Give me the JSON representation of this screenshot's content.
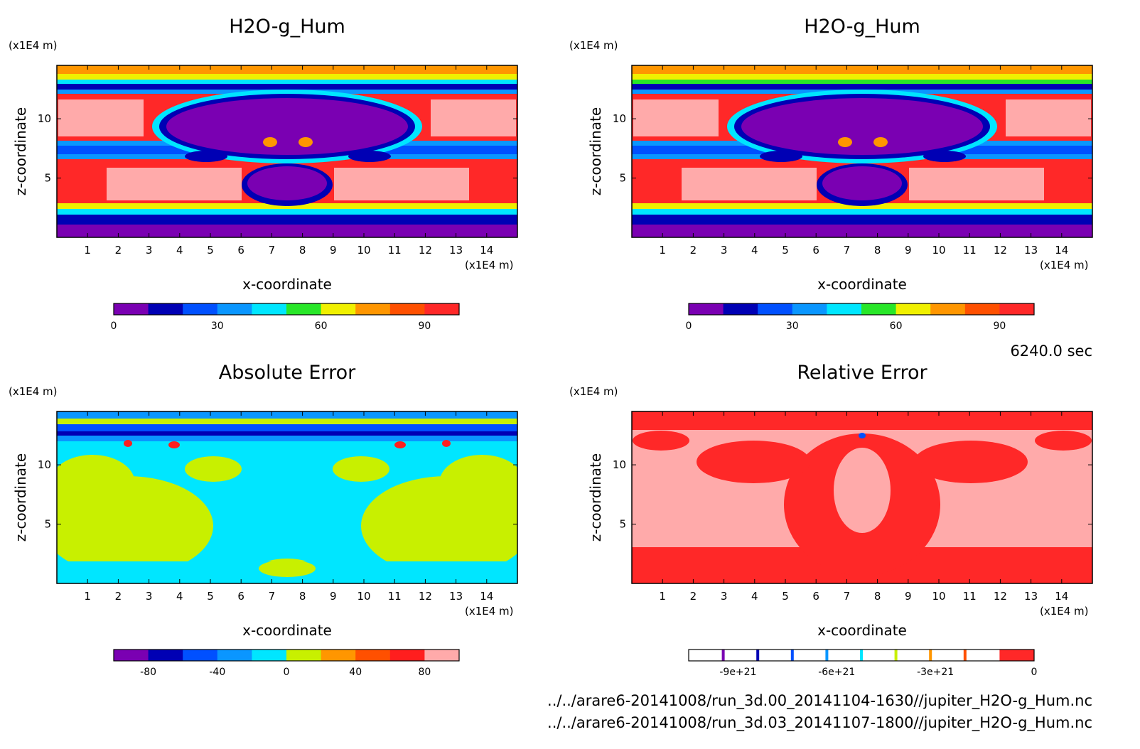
{
  "time_label": "6240.0 sec",
  "files": [
    "../../arare6-20141008/run_3d.00_20141104-1630//jupiter_H2O-g_Hum.nc",
    "../../arare6-20141008/run_3d.03_20141107-1800//jupiter_H2O-g_Hum.nc"
  ],
  "chart_data": [
    {
      "type": "heatmap",
      "title": "H2O-g_Hum",
      "xlabel": "x-coordinate",
      "ylabel": "z-coordinate",
      "x_unit": "(x1E4 m)",
      "y_unit": "(x1E4 m)",
      "xlim": [
        0,
        15
      ],
      "ylim": [
        0,
        14.5
      ],
      "xticks": [
        "1",
        "2",
        "3",
        "4",
        "5",
        "6",
        "7",
        "8",
        "9",
        "10",
        "11",
        "12",
        "13",
        "14"
      ],
      "yticks": [
        "5",
        "10"
      ],
      "colorbar": {
        "colors": [
          "#7a00b2",
          "#0000b4",
          "#0050ff",
          "#0a96ff",
          "#00e6ff",
          "#28e628",
          "#f0f000",
          "#ff9600",
          "#ff5000",
          "#ff2828"
        ],
        "tick_labels": [
          "0",
          "30",
          "60",
          "90"
        ],
        "tick_values": [
          0,
          30,
          60,
          90
        ],
        "range": [
          0,
          100
        ]
      }
    },
    {
      "type": "heatmap",
      "title": "H2O-g_Hum",
      "xlabel": "x-coordinate",
      "ylabel": "z-coordinate",
      "x_unit": "(x1E4 m)",
      "y_unit": "(x1E4 m)",
      "xlim": [
        0,
        15
      ],
      "ylim": [
        0,
        14.5
      ],
      "xticks": [
        "1",
        "2",
        "3",
        "4",
        "5",
        "6",
        "7",
        "8",
        "9",
        "10",
        "11",
        "12",
        "13",
        "14"
      ],
      "yticks": [
        "5",
        "10"
      ],
      "colorbar": {
        "colors": [
          "#7a00b2",
          "#0000b4",
          "#0050ff",
          "#0a96ff",
          "#00e6ff",
          "#28e628",
          "#f0f000",
          "#ff9600",
          "#ff5000",
          "#ff2828"
        ],
        "tick_labels": [
          "0",
          "30",
          "60",
          "90"
        ],
        "tick_values": [
          0,
          30,
          60,
          90
        ],
        "range": [
          0,
          100
        ]
      }
    },
    {
      "type": "heatmap",
      "title": "Absolute Error",
      "xlabel": "x-coordinate",
      "ylabel": "z-coordinate",
      "x_unit": "(x1E4 m)",
      "y_unit": "(x1E4 m)",
      "xlim": [
        0,
        15
      ],
      "ylim": [
        0,
        14.5
      ],
      "xticks": [
        "1",
        "2",
        "3",
        "4",
        "5",
        "6",
        "7",
        "8",
        "9",
        "10",
        "11",
        "12",
        "13",
        "14"
      ],
      "yticks": [
        "5",
        "10"
      ],
      "colorbar": {
        "colors": [
          "#7a00b2",
          "#0000b4",
          "#0050ff",
          "#0a96ff",
          "#00e6ff",
          "#c8f000",
          "#ff9600",
          "#ff5000",
          "#ff1e1e",
          "#ffaaaa"
        ],
        "tick_labels": [
          "-80",
          "-40",
          "0",
          "40",
          "80"
        ],
        "tick_values": [
          -80,
          -40,
          0,
          40,
          80
        ],
        "range": [
          -100,
          100
        ]
      }
    },
    {
      "type": "heatmap",
      "title": "Relative Error",
      "xlabel": "x-coordinate",
      "ylabel": "z-coordinate",
      "x_unit": "(x1E4 m)",
      "y_unit": "(x1E4 m)",
      "xlim": [
        0,
        15
      ],
      "ylim": [
        0,
        14.5
      ],
      "xticks": [
        "1",
        "2",
        "3",
        "4",
        "5",
        "6",
        "7",
        "8",
        "9",
        "10",
        "11",
        "12",
        "13",
        "14"
      ],
      "yticks": [
        "5",
        "10"
      ],
      "colorbar": {
        "colors": [
          "#ffffff",
          "#ffffff",
          "#ffffff",
          "#ffffff",
          "#ffffff",
          "#ffffff",
          "#ffffff",
          "#ffffff",
          "#ffffff",
          "#ff2828"
        ],
        "boundary_colors": [
          "#7a00b2",
          "#0000b4",
          "#0050ff",
          "#0a96ff",
          "#00e6ff",
          "#c8f000",
          "#ff9600",
          "#ff5000"
        ],
        "tick_labels": [
          "-9e+21",
          "-6e+21",
          "-3e+21",
          "0"
        ],
        "tick_values": [
          -9e+21,
          -6e+21,
          -3e+21,
          0
        ],
        "range": [
          -1.05e+22,
          0
        ]
      }
    }
  ]
}
